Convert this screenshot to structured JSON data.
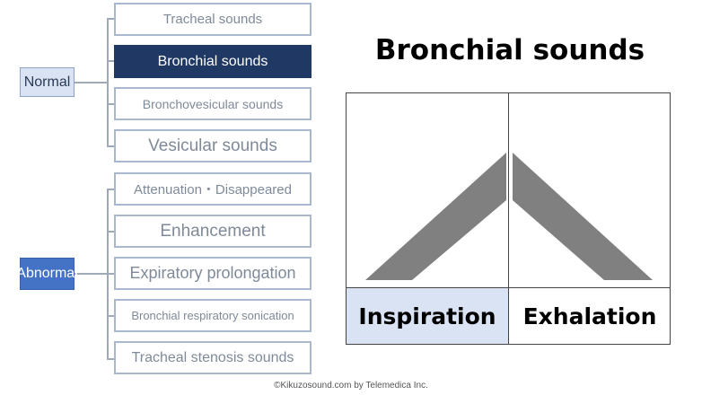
{
  "tree": {
    "normal": {
      "label": "Normal",
      "items": [
        {
          "label": "Tracheal sounds",
          "selected": false
        },
        {
          "label": "Bronchial sounds",
          "selected": true
        },
        {
          "label": "Bronchovesicular sounds",
          "selected": false
        },
        {
          "label": "Vesicular sounds",
          "selected": false
        }
      ]
    },
    "abnormal": {
      "label": "Abnormal",
      "items": [
        {
          "label": "Attenuation・Disappeared",
          "selected": false
        },
        {
          "label": "Enhancement",
          "selected": false
        },
        {
          "label": "Expiratory prolongation",
          "selected": false
        },
        {
          "label": "Bronchial respiratory sonication",
          "selected": false
        },
        {
          "label": "Tracheal stenosis sounds",
          "selected": false
        }
      ]
    }
  },
  "diagram": {
    "title": "Bronchial sounds",
    "phases": [
      "Inspiration",
      "Exhalation"
    ]
  },
  "credit": "©Kikuzosound.com by Telemedica Inc.",
  "colors": {
    "selected": "#1f3864",
    "normal_label_bg": "#dae3f3",
    "abnormal_label_bg": "#4472c4",
    "inspiration_bg": "#dae3f3",
    "sound_shape": "#808080"
  }
}
